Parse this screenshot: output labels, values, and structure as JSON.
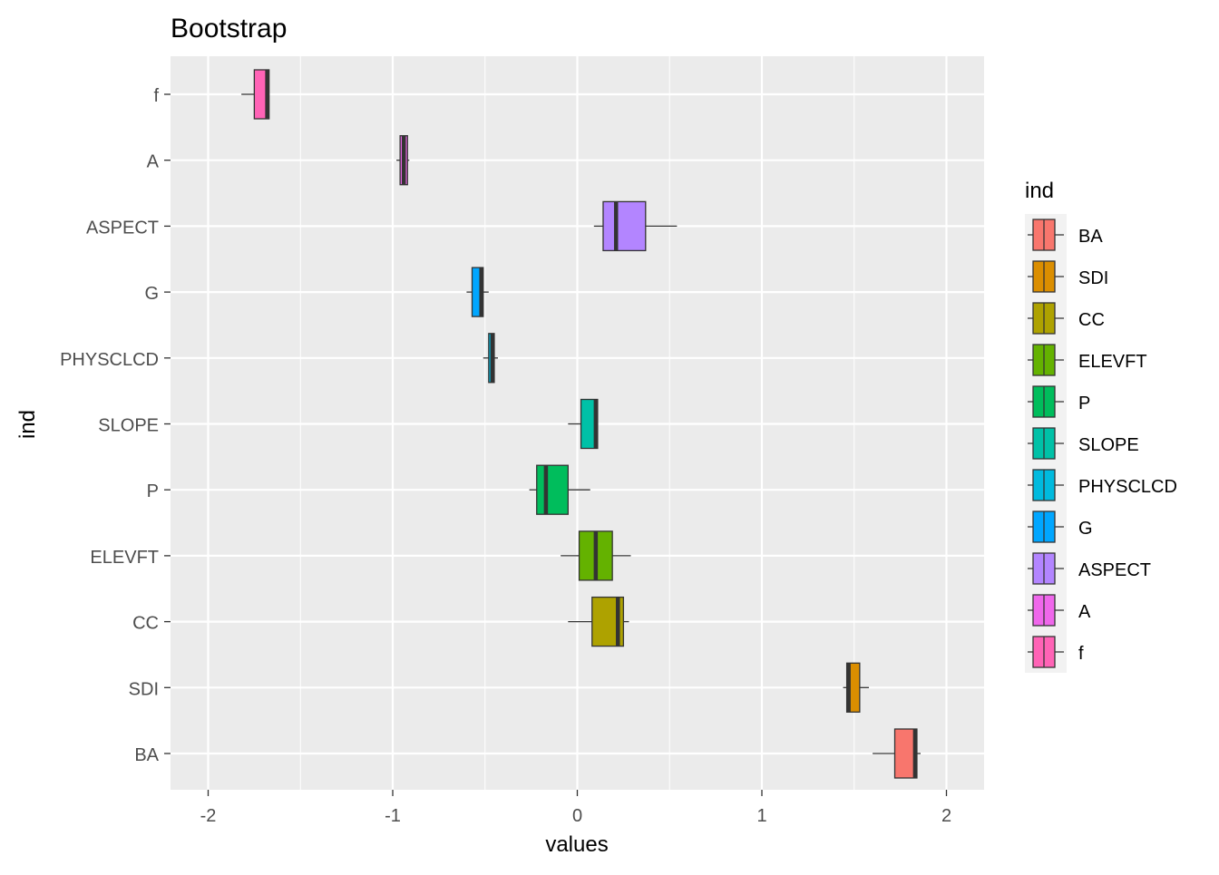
{
  "chart_data": {
    "type": "boxplot",
    "title": "Bootstrap",
    "xlabel": "values",
    "ylabel": "ind",
    "xlim": [
      -2.2,
      2.2
    ],
    "xticks": [
      -2,
      -1,
      0,
      1,
      2
    ],
    "xtick_labels": [
      "-2",
      "-1",
      "0",
      "1",
      "2"
    ],
    "minor_grid": true,
    "legend": {
      "title": "ind",
      "position": "right"
    },
    "categories": [
      "f",
      "A",
      "ASPECT",
      "G",
      "PHYSCLCD",
      "SLOPE",
      "P",
      "ELEVFT",
      "CC",
      "SDI",
      "BA"
    ],
    "legend_order": [
      "BA",
      "SDI",
      "CC",
      "ELEVFT",
      "P",
      "SLOPE",
      "PHYSCLCD",
      "G",
      "ASPECT",
      "A",
      "f"
    ],
    "colors": {
      "BA": "#F8766D",
      "SDI": "#DB8E00",
      "CC": "#AEA200",
      "ELEVFT": "#64B200",
      "P": "#00BD5C",
      "SLOPE": "#00C1A7",
      "PHYSCLCD": "#00BADE",
      "G": "#00A6FF",
      "ASPECT": "#B385FF",
      "A": "#EF67EB",
      "f": "#FF63B6"
    },
    "boxes": {
      "f": {
        "min": -1.82,
        "q1": -1.75,
        "median": -1.68,
        "q3": -1.67,
        "max": -1.67
      },
      "A": {
        "min": -0.98,
        "q1": -0.96,
        "median": -0.94,
        "q3": -0.92,
        "max": -0.91
      },
      "ASPECT": {
        "min": 0.09,
        "q1": 0.14,
        "median": 0.21,
        "q3": 0.37,
        "max": 0.54
      },
      "G": {
        "min": -0.6,
        "q1": -0.57,
        "median": -0.52,
        "q3": -0.51,
        "max": -0.48
      },
      "PHYSCLCD": {
        "min": -0.51,
        "q1": -0.48,
        "median": -0.46,
        "q3": -0.45,
        "max": -0.43
      },
      "SLOPE": {
        "min": -0.05,
        "q1": 0.02,
        "median": 0.1,
        "q3": 0.11,
        "max": 0.11
      },
      "P": {
        "min": -0.26,
        "q1": -0.22,
        "median": -0.17,
        "q3": -0.05,
        "max": 0.07
      },
      "ELEVFT": {
        "min": -0.09,
        "q1": 0.01,
        "median": 0.1,
        "q3": 0.19,
        "max": 0.29
      },
      "CC": {
        "min": -0.05,
        "q1": 0.08,
        "median": 0.22,
        "q3": 0.25,
        "max": 0.28
      },
      "SDI": {
        "min": 1.44,
        "q1": 1.46,
        "median": 1.47,
        "q3": 1.53,
        "max": 1.58
      },
      "BA": {
        "min": 1.6,
        "q1": 1.72,
        "median": 1.83,
        "q3": 1.84,
        "max": 1.86
      }
    }
  }
}
